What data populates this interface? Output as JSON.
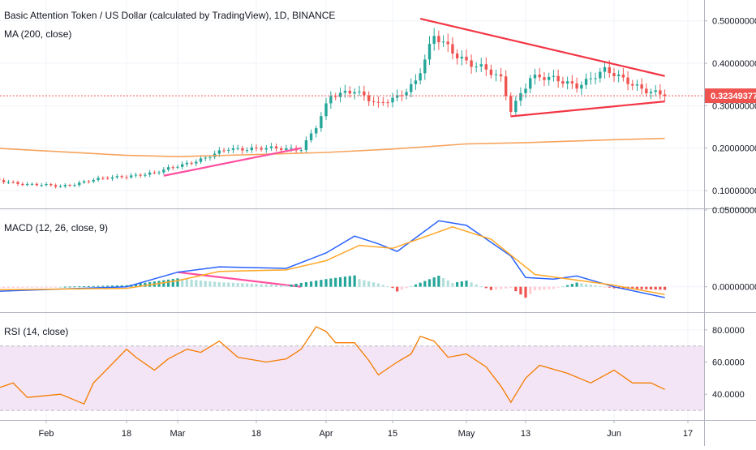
{
  "header": {
    "title": "Basic Attention Token / US Dollar (calculated by TradingView), 1D, BINANCE",
    "ma_label": "MA (200, close)"
  },
  "colors": {
    "up": "#26a69a",
    "down": "#ef5350",
    "ma200": "#f7a35c",
    "macd_line": "#2962ff",
    "signal_line": "#ffa726",
    "rsi_line": "#f57c00",
    "rsi_band": "#f3e5f5",
    "trendline_red": "#f23645",
    "trendline_pink": "#ff4fa0",
    "price_tag": "#ef5350"
  },
  "chart_data": [
    {
      "type": "candlestick",
      "title": "Basic Attention Token / US Dollar (calculated by TradingView), 1D, BINANCE",
      "y_axis_labels": [
        "0.50000000",
        "0.40000000",
        "0.30000000",
        "0.20000000",
        "0.10000000"
      ],
      "ylim": [
        0.06,
        0.53
      ],
      "last_price": 0.32349377,
      "last_price_label": "0.32349377",
      "x_axis_labels": [
        "Feb",
        "18",
        "Mar",
        "18",
        "Apr",
        "15",
        "May",
        "13",
        "Jun",
        "17"
      ],
      "x_axis_dates": [
        "2019-02-01",
        "2019-02-18",
        "2019-03-01",
        "2019-03-18",
        "2019-04-01",
        "2019-04-15",
        "2019-05-01",
        "2019-05-13",
        "2019-06-01",
        "2019-06-17"
      ],
      "close_anchors": [
        [
          "2019-01-21",
          0.125
        ],
        [
          "2019-01-28",
          0.115
        ],
        [
          "2019-02-04",
          0.11
        ],
        [
          "2019-02-11",
          0.125
        ],
        [
          "2019-02-18",
          0.135
        ],
        [
          "2019-02-24",
          0.14
        ],
        [
          "2019-03-01",
          0.16
        ],
        [
          "2019-03-07",
          0.175
        ],
        [
          "2019-03-12",
          0.2
        ],
        [
          "2019-03-20",
          0.198
        ],
        [
          "2019-03-27",
          0.2
        ],
        [
          "2019-03-30",
          0.25
        ],
        [
          "2019-04-02",
          0.32
        ],
        [
          "2019-04-07",
          0.34
        ],
        [
          "2019-04-12",
          0.3
        ],
        [
          "2019-04-16",
          0.32
        ],
        [
          "2019-04-20",
          0.36
        ],
        [
          "2019-04-24",
          0.46
        ],
        [
          "2019-04-29",
          0.42
        ],
        [
          "2019-05-04",
          0.39
        ],
        [
          "2019-05-08",
          0.36
        ],
        [
          "2019-05-10",
          0.29
        ],
        [
          "2019-05-14",
          0.37
        ],
        [
          "2019-05-19",
          0.36
        ],
        [
          "2019-05-24",
          0.35
        ],
        [
          "2019-05-30",
          0.38
        ],
        [
          "2019-06-04",
          0.36
        ],
        [
          "2019-06-09",
          0.33
        ],
        [
          "2019-06-12",
          0.323
        ]
      ],
      "series": [
        {
          "name": "MA (200, close)",
          "points": [
            [
              "2019-01-21",
              0.2
            ],
            [
              "2019-02-18",
              0.183
            ],
            [
              "2019-03-01",
              0.18
            ],
            [
              "2019-03-18",
              0.185
            ],
            [
              "2019-04-01",
              0.19
            ],
            [
              "2019-04-15",
              0.198
            ],
            [
              "2019-05-01",
              0.21
            ],
            [
              "2019-05-13",
              0.213
            ],
            [
              "2019-06-01",
              0.22
            ],
            [
              "2019-06-12",
              0.223
            ]
          ]
        }
      ],
      "trendlines": [
        {
          "from": [
            "2019-04-21",
            0.505
          ],
          "to": [
            "2019-06-12",
            0.37
          ]
        },
        {
          "from": [
            "2019-05-10",
            0.275
          ],
          "to": [
            "2019-06-12",
            0.31
          ]
        },
        {
          "from": [
            "2019-02-26",
            0.135
          ],
          "to": [
            "2019-03-27",
            0.2
          ]
        }
      ]
    },
    {
      "type": "macd",
      "title": "MACD (12, 26, close, 9)",
      "y_axis_labels": [
        "0.05000000",
        "0.00000000"
      ],
      "ylim": [
        -0.016,
        0.05
      ],
      "macd": [
        [
          "2019-01-21",
          -0.003
        ],
        [
          "2019-02-18",
          0.0
        ],
        [
          "2019-03-01",
          0.0095
        ],
        [
          "2019-03-10",
          0.013
        ],
        [
          "2019-03-24",
          0.012
        ],
        [
          "2019-04-01",
          0.022
        ],
        [
          "2019-04-07",
          0.033
        ],
        [
          "2019-04-12",
          0.028
        ],
        [
          "2019-04-16",
          0.023
        ],
        [
          "2019-04-25",
          0.043
        ],
        [
          "2019-05-01",
          0.04
        ],
        [
          "2019-05-10",
          0.02
        ],
        [
          "2019-05-13",
          0.006
        ],
        [
          "2019-05-19",
          0.005
        ],
        [
          "2019-05-24",
          0.007
        ],
        [
          "2019-06-01",
          0.0
        ],
        [
          "2019-06-12",
          -0.007
        ]
      ],
      "signal": [
        [
          "2019-01-21",
          -0.002
        ],
        [
          "2019-02-18",
          -0.001
        ],
        [
          "2019-03-01",
          0.004
        ],
        [
          "2019-03-10",
          0.01
        ],
        [
          "2019-03-24",
          0.011
        ],
        [
          "2019-04-01",
          0.017
        ],
        [
          "2019-04-08",
          0.027
        ],
        [
          "2019-04-15",
          0.025
        ],
        [
          "2019-04-28",
          0.039
        ],
        [
          "2019-05-06",
          0.031
        ],
        [
          "2019-05-15",
          0.008
        ],
        [
          "2019-06-01",
          0.001
        ],
        [
          "2019-06-12",
          -0.005
        ]
      ]
    },
    {
      "type": "line",
      "title": "RSI (14, close)",
      "y_axis_labels": [
        "80.0000",
        "60.0000",
        "40.0000"
      ],
      "ylim": [
        24,
        90
      ],
      "band": [
        30,
        70
      ],
      "rsi": [
        [
          "2019-01-21",
          43
        ],
        [
          "2019-01-25",
          47
        ],
        [
          "2019-01-28",
          38
        ],
        [
          "2019-02-04",
          40
        ],
        [
          "2019-02-09",
          34
        ],
        [
          "2019-02-11",
          47
        ],
        [
          "2019-02-14",
          56
        ],
        [
          "2019-02-18",
          68
        ],
        [
          "2019-02-20",
          63
        ],
        [
          "2019-02-24",
          55
        ],
        [
          "2019-02-27",
          62
        ],
        [
          "2019-03-03",
          68
        ],
        [
          "2019-03-06",
          66
        ],
        [
          "2019-03-10",
          73
        ],
        [
          "2019-03-14",
          63
        ],
        [
          "2019-03-20",
          60
        ],
        [
          "2019-03-24",
          62
        ],
        [
          "2019-03-27",
          68
        ],
        [
          "2019-03-30",
          82
        ],
        [
          "2019-04-01",
          79
        ],
        [
          "2019-04-03",
          72
        ],
        [
          "2019-04-07",
          72
        ],
        [
          "2019-04-10",
          61
        ],
        [
          "2019-04-12",
          52
        ],
        [
          "2019-04-16",
          60
        ],
        [
          "2019-04-19",
          65
        ],
        [
          "2019-04-21",
          76
        ],
        [
          "2019-04-24",
          73
        ],
        [
          "2019-04-27",
          63
        ],
        [
          "2019-05-01",
          65
        ],
        [
          "2019-05-05",
          57
        ],
        [
          "2019-05-08",
          45
        ],
        [
          "2019-05-10",
          35
        ],
        [
          "2019-05-13",
          50
        ],
        [
          "2019-05-16",
          58
        ],
        [
          "2019-05-22",
          53
        ],
        [
          "2019-05-27",
          47
        ],
        [
          "2019-06-01",
          55
        ],
        [
          "2019-06-05",
          47
        ],
        [
          "2019-06-09",
          47
        ],
        [
          "2019-06-12",
          43
        ]
      ]
    }
  ]
}
